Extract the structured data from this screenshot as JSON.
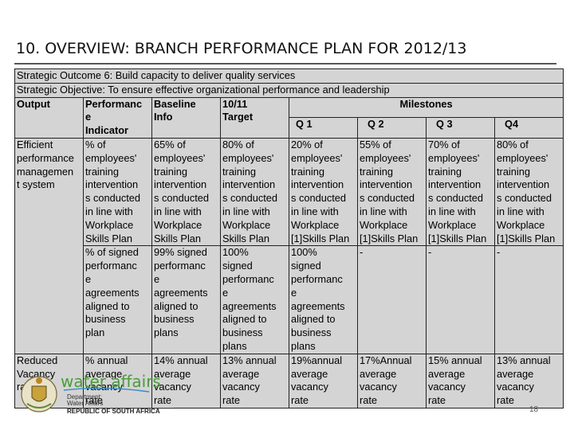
{
  "title": "10. OVERVIEW: BRANCH PERFORMANCE PLAN FOR 2012/13",
  "strategic_outcome": "Strategic Outcome 6: Build capacity to deliver quality services",
  "strategic_objective": "Strategic Objective:  To ensure effective organizational performance and leadership",
  "headers": {
    "output": "Output",
    "performance_indicator": "Performanc\ne\nIndicator",
    "baseline_info": "Baseline\nInfo",
    "target": "10/11\nTarget",
    "milestones": "Milestones",
    "q1": "Q 1",
    "q2": "Q 2",
    "q3": "Q 3",
    "q4": "Q4"
  },
  "rows": [
    {
      "output": "Efficient\nperformance\nmanagemen\nt system",
      "indicator": "% of\nemployees'\ntraining\nintervention\ns conducted\nin line with\nWorkplace\nSkills Plan",
      "baseline": "65% of\nemployees'\ntraining\nintervention\ns conducted\n in line with\nWorkplace\nSkills Plan",
      "target": "80% of\nemployees'\ntraining\nintervention\ns conducted\nin line with\nWorkplace\nSkills Plan",
      "q1": "20% of\nemployees'\ntraining\nintervention\ns conducted\nin line with\nWorkplace\n[1]Skills Plan",
      "q2": "55% of\nemployees'\ntraining\nintervention\ns conducted\nin line with\nWorkplace\n[1]Skills Plan",
      "q3": "70% of\nemployees'\ntraining\nintervention\ns conducted\nin line with\nWorkplace\n[1]Skills Plan",
      "q4": "80% of\nemployees'\ntraining\nintervention\ns conducted\nin line with\nWorkplace\n[1]Skills Plan"
    },
    {
      "output": "",
      "indicator": "% of signed\nperformanc\ne\nagreements\naligned to\nbusiness\nplan",
      "baseline": "99% signed\nperformanc\ne\nagreements\naligned to\nbusiness\nplans",
      "target": "100%\nsigned\nperformanc\ne\nagreements\naligned to\nbusiness\nplans",
      "q1": "100%\nsigned\nperformanc\ne\nagreements\naligned to\nbusiness\nplans",
      "q2": "-",
      "q3": "-",
      "q4": "-"
    },
    {
      "output": "Reduced\nVacancy\nrate",
      "indicator": "% annual\naverage\nvacancy\nrate",
      "baseline": "14% annual\naverage\nvacancy\nrate",
      "target": "13% annual\naverage\nvacancy\nrate",
      "q1": "19%annual\naverage\nvacancy\nrate",
      "q2": "17%Annual\naverage\nvacancy\nrate",
      "q3": "15% annual\naverage\nvacancy\nrate",
      "q4": "13% annual\naverage\nvacancy\nrate"
    }
  ],
  "logo": {
    "name": "water affairs",
    "line1": "Department:",
    "line2": "Water Affairs",
    "line3": "REPUBLIC OF SOUTH AFRICA"
  },
  "page_number": "18"
}
